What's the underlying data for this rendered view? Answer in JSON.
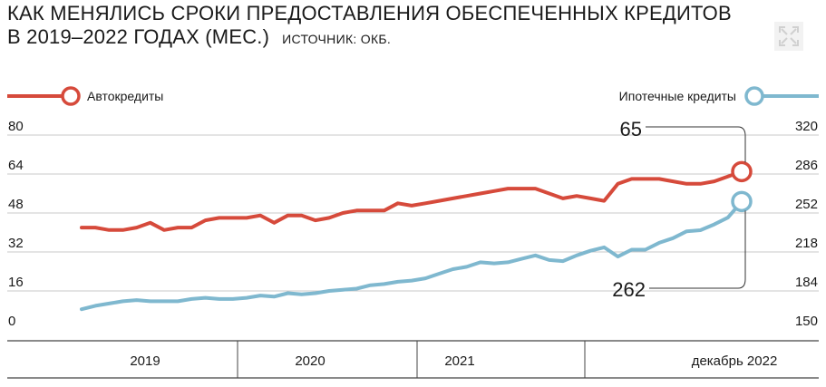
{
  "header": {
    "title_line1": "КАК МЕНЯЛИСЬ СРОКИ ПРЕДОСТАВЛЕНИЯ ОБЕСПЕЧЕННЫХ КРЕДИТОВ",
    "title_line2": "В 2019–2022 ГОДАХ (МЕС.)",
    "source": "ИСТОЧНИК: ОКБ."
  },
  "icons": {
    "expand": "expand-icon"
  },
  "colors": {
    "auto": "#d64a3b",
    "mortgage": "#7fb8cf",
    "grid": "#c8c8c8",
    "text": "#1a1a1a"
  },
  "chart_data": {
    "type": "line",
    "title": "КАК МЕНЯЛИСЬ СРОКИ ПРЕДОСТАВЛЕНИЯ ОБЕСПЕЧЕННЫХ КРЕДИТОВ В 2019–2022 ГОДАХ (МЕС.)",
    "x_labels": [
      "2019",
      "2020",
      "2021",
      "декабрь 2022"
    ],
    "left_axis": {
      "ticks": [
        "80",
        "64",
        "48",
        "32",
        "16",
        "0"
      ],
      "range": [
        0,
        80
      ]
    },
    "right_axis": {
      "ticks": [
        "320",
        "286",
        "252",
        "218",
        "184",
        "150"
      ],
      "range": [
        150,
        320
      ]
    },
    "grid": true,
    "series": [
      {
        "name": "Автокредиты",
        "axis": "left",
        "color": "#d64a3b",
        "end_label": "65",
        "values": [
          42,
          42,
          41,
          41,
          42,
          44,
          41,
          42,
          42,
          45,
          46,
          46,
          46,
          47,
          44,
          47,
          47,
          45,
          46,
          48,
          49,
          49,
          49,
          52,
          51,
          52,
          53,
          54,
          55,
          56,
          57,
          58,
          58,
          58,
          56,
          54,
          55,
          54,
          53,
          60,
          62,
          62,
          62,
          61,
          60,
          60,
          61,
          63,
          65
        ]
      },
      {
        "name": "Ипотечные кредиты",
        "axis": "right",
        "color": "#7fb8cf",
        "end_label": "262",
        "values": [
          168,
          171,
          173,
          175,
          176,
          175,
          175,
          175,
          177,
          178,
          177,
          177,
          178,
          180,
          179,
          182,
          181,
          182,
          184,
          185,
          186,
          189,
          190,
          192,
          193,
          195,
          199,
          203,
          205,
          209,
          208,
          209,
          212,
          215,
          211,
          210,
          215,
          219,
          222,
          214,
          220,
          220,
          226,
          230,
          236,
          237,
          242,
          248,
          262
        ]
      }
    ]
  }
}
